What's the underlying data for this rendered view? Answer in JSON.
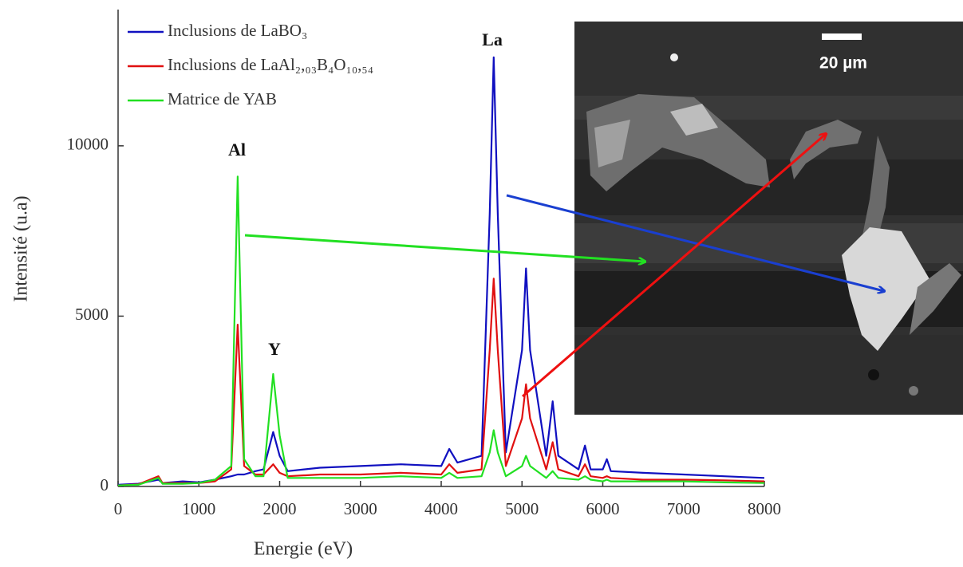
{
  "chart_data": {
    "type": "line",
    "x_label": "Energie (eV)",
    "y_label": "Intensité (u.a)",
    "x": [
      0,
      250,
      500,
      550,
      800,
      1000,
      1200,
      1400,
      1480,
      1560,
      1700,
      1800,
      1920,
      2000,
      2100,
      2500,
      3000,
      3500,
      4000,
      4100,
      4200,
      4500,
      4600,
      4650,
      4700,
      4800,
      5000,
      5050,
      5100,
      5300,
      5380,
      5450,
      5700,
      5780,
      5850,
      6000,
      6050,
      6100,
      6500,
      7000,
      7500,
      8000
    ],
    "series": [
      {
        "name": "Inclusions de LaBO₃",
        "color": "#1010c0",
        "values": [
          50,
          80,
          200,
          100,
          150,
          120,
          200,
          300,
          350,
          350,
          450,
          500,
          1600,
          900,
          450,
          550,
          600,
          650,
          600,
          1100,
          700,
          900,
          8000,
          12600,
          8000,
          1000,
          4000,
          6400,
          4000,
          900,
          2500,
          900,
          500,
          1200,
          500,
          500,
          800,
          450,
          400,
          350,
          300,
          250
        ]
      },
      {
        "name": "Inclusions de LaAl₂,₀₃B₄O₁₀,₅₄",
        "color": "#e01010",
        "values": [
          30,
          60,
          300,
          100,
          100,
          100,
          150,
          500,
          4750,
          600,
          350,
          350,
          650,
          400,
          300,
          350,
          350,
          400,
          350,
          650,
          400,
          500,
          4000,
          6100,
          4000,
          600,
          2000,
          3000,
          2000,
          500,
          1300,
          500,
          300,
          650,
          300,
          250,
          300,
          250,
          200,
          200,
          180,
          150
        ]
      },
      {
        "name": "Matrice de YAB",
        "color": "#22e022",
        "values": [
          30,
          50,
          250,
          80,
          80,
          100,
          200,
          600,
          9100,
          800,
          300,
          300,
          3300,
          1500,
          250,
          250,
          250,
          300,
          250,
          400,
          250,
          300,
          1000,
          1650,
          1000,
          300,
          600,
          900,
          600,
          250,
          450,
          250,
          200,
          300,
          200,
          150,
          200,
          150,
          150,
          150,
          120,
          100
        ]
      }
    ],
    "xlim": [
      0,
      8000
    ],
    "xticks": [
      0,
      1000,
      2000,
      3000,
      4000,
      5000,
      6000,
      7000,
      8000
    ],
    "ylim": [
      0,
      14000
    ],
    "yticks": [
      0,
      5000,
      10000
    ],
    "annotations": [
      "Al",
      "Y",
      "La",
      "20 µm"
    ]
  }
}
